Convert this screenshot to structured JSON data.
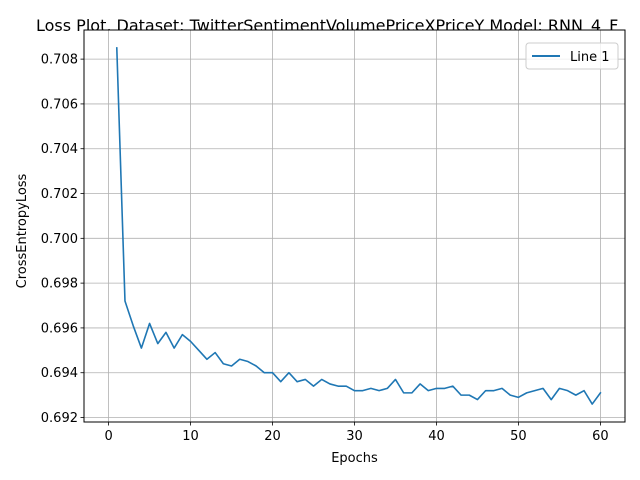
{
  "chart_data": {
    "type": "line",
    "title": "Loss Plot, Dataset: TwitterSentimentVolumePriceXPriceY Model: RNN_4_F",
    "xlabel": "Epochs",
    "ylabel": "CrossEntropyLoss",
    "xlim": [
      -3,
      63
    ],
    "ylim": [
      0.6918,
      0.7093
    ],
    "xticks": [
      0,
      10,
      20,
      30,
      40,
      50,
      60
    ],
    "xtick_labels": [
      "0",
      "10",
      "20",
      "30",
      "40",
      "50",
      "60"
    ],
    "yticks": [
      0.692,
      0.694,
      0.696,
      0.698,
      0.7,
      0.702,
      0.704,
      0.706,
      0.708
    ],
    "ytick_labels": [
      "0.692",
      "0.694",
      "0.696",
      "0.698",
      "0.700",
      "0.702",
      "0.704",
      "0.706",
      "0.708"
    ],
    "grid": true,
    "legend_position": "top-right",
    "series": [
      {
        "name": "Line 1",
        "color": "#1f77b4",
        "x": [
          1,
          2,
          3,
          4,
          5,
          6,
          7,
          8,
          9,
          10,
          11,
          12,
          13,
          14,
          15,
          16,
          17,
          18,
          19,
          20,
          21,
          22,
          23,
          24,
          25,
          26,
          27,
          28,
          29,
          30,
          31,
          32,
          33,
          34,
          35,
          36,
          37,
          38,
          39,
          40,
          41,
          42,
          43,
          44,
          45,
          46,
          47,
          48,
          49,
          50,
          51,
          52,
          53,
          54,
          55,
          56,
          57,
          58,
          59,
          60
        ],
        "values": [
          0.7085,
          0.6972,
          0.6961,
          0.6951,
          0.6962,
          0.6953,
          0.6958,
          0.6951,
          0.6957,
          0.6954,
          0.695,
          0.6946,
          0.6949,
          0.6944,
          0.6943,
          0.6946,
          0.6945,
          0.6943,
          0.694,
          0.694,
          0.6936,
          0.694,
          0.6936,
          0.6937,
          0.6934,
          0.6937,
          0.6935,
          0.6934,
          0.6934,
          0.6932,
          0.6932,
          0.6933,
          0.6932,
          0.6933,
          0.6937,
          0.6931,
          0.6931,
          0.6935,
          0.6932,
          0.6933,
          0.6933,
          0.6934,
          0.693,
          0.693,
          0.6928,
          0.6932,
          0.6932,
          0.6933,
          0.693,
          0.6929,
          0.6931,
          0.6932,
          0.6933,
          0.6928,
          0.6933,
          0.6932,
          0.693,
          0.6932,
          0.6926,
          0.6931
        ]
      }
    ]
  }
}
